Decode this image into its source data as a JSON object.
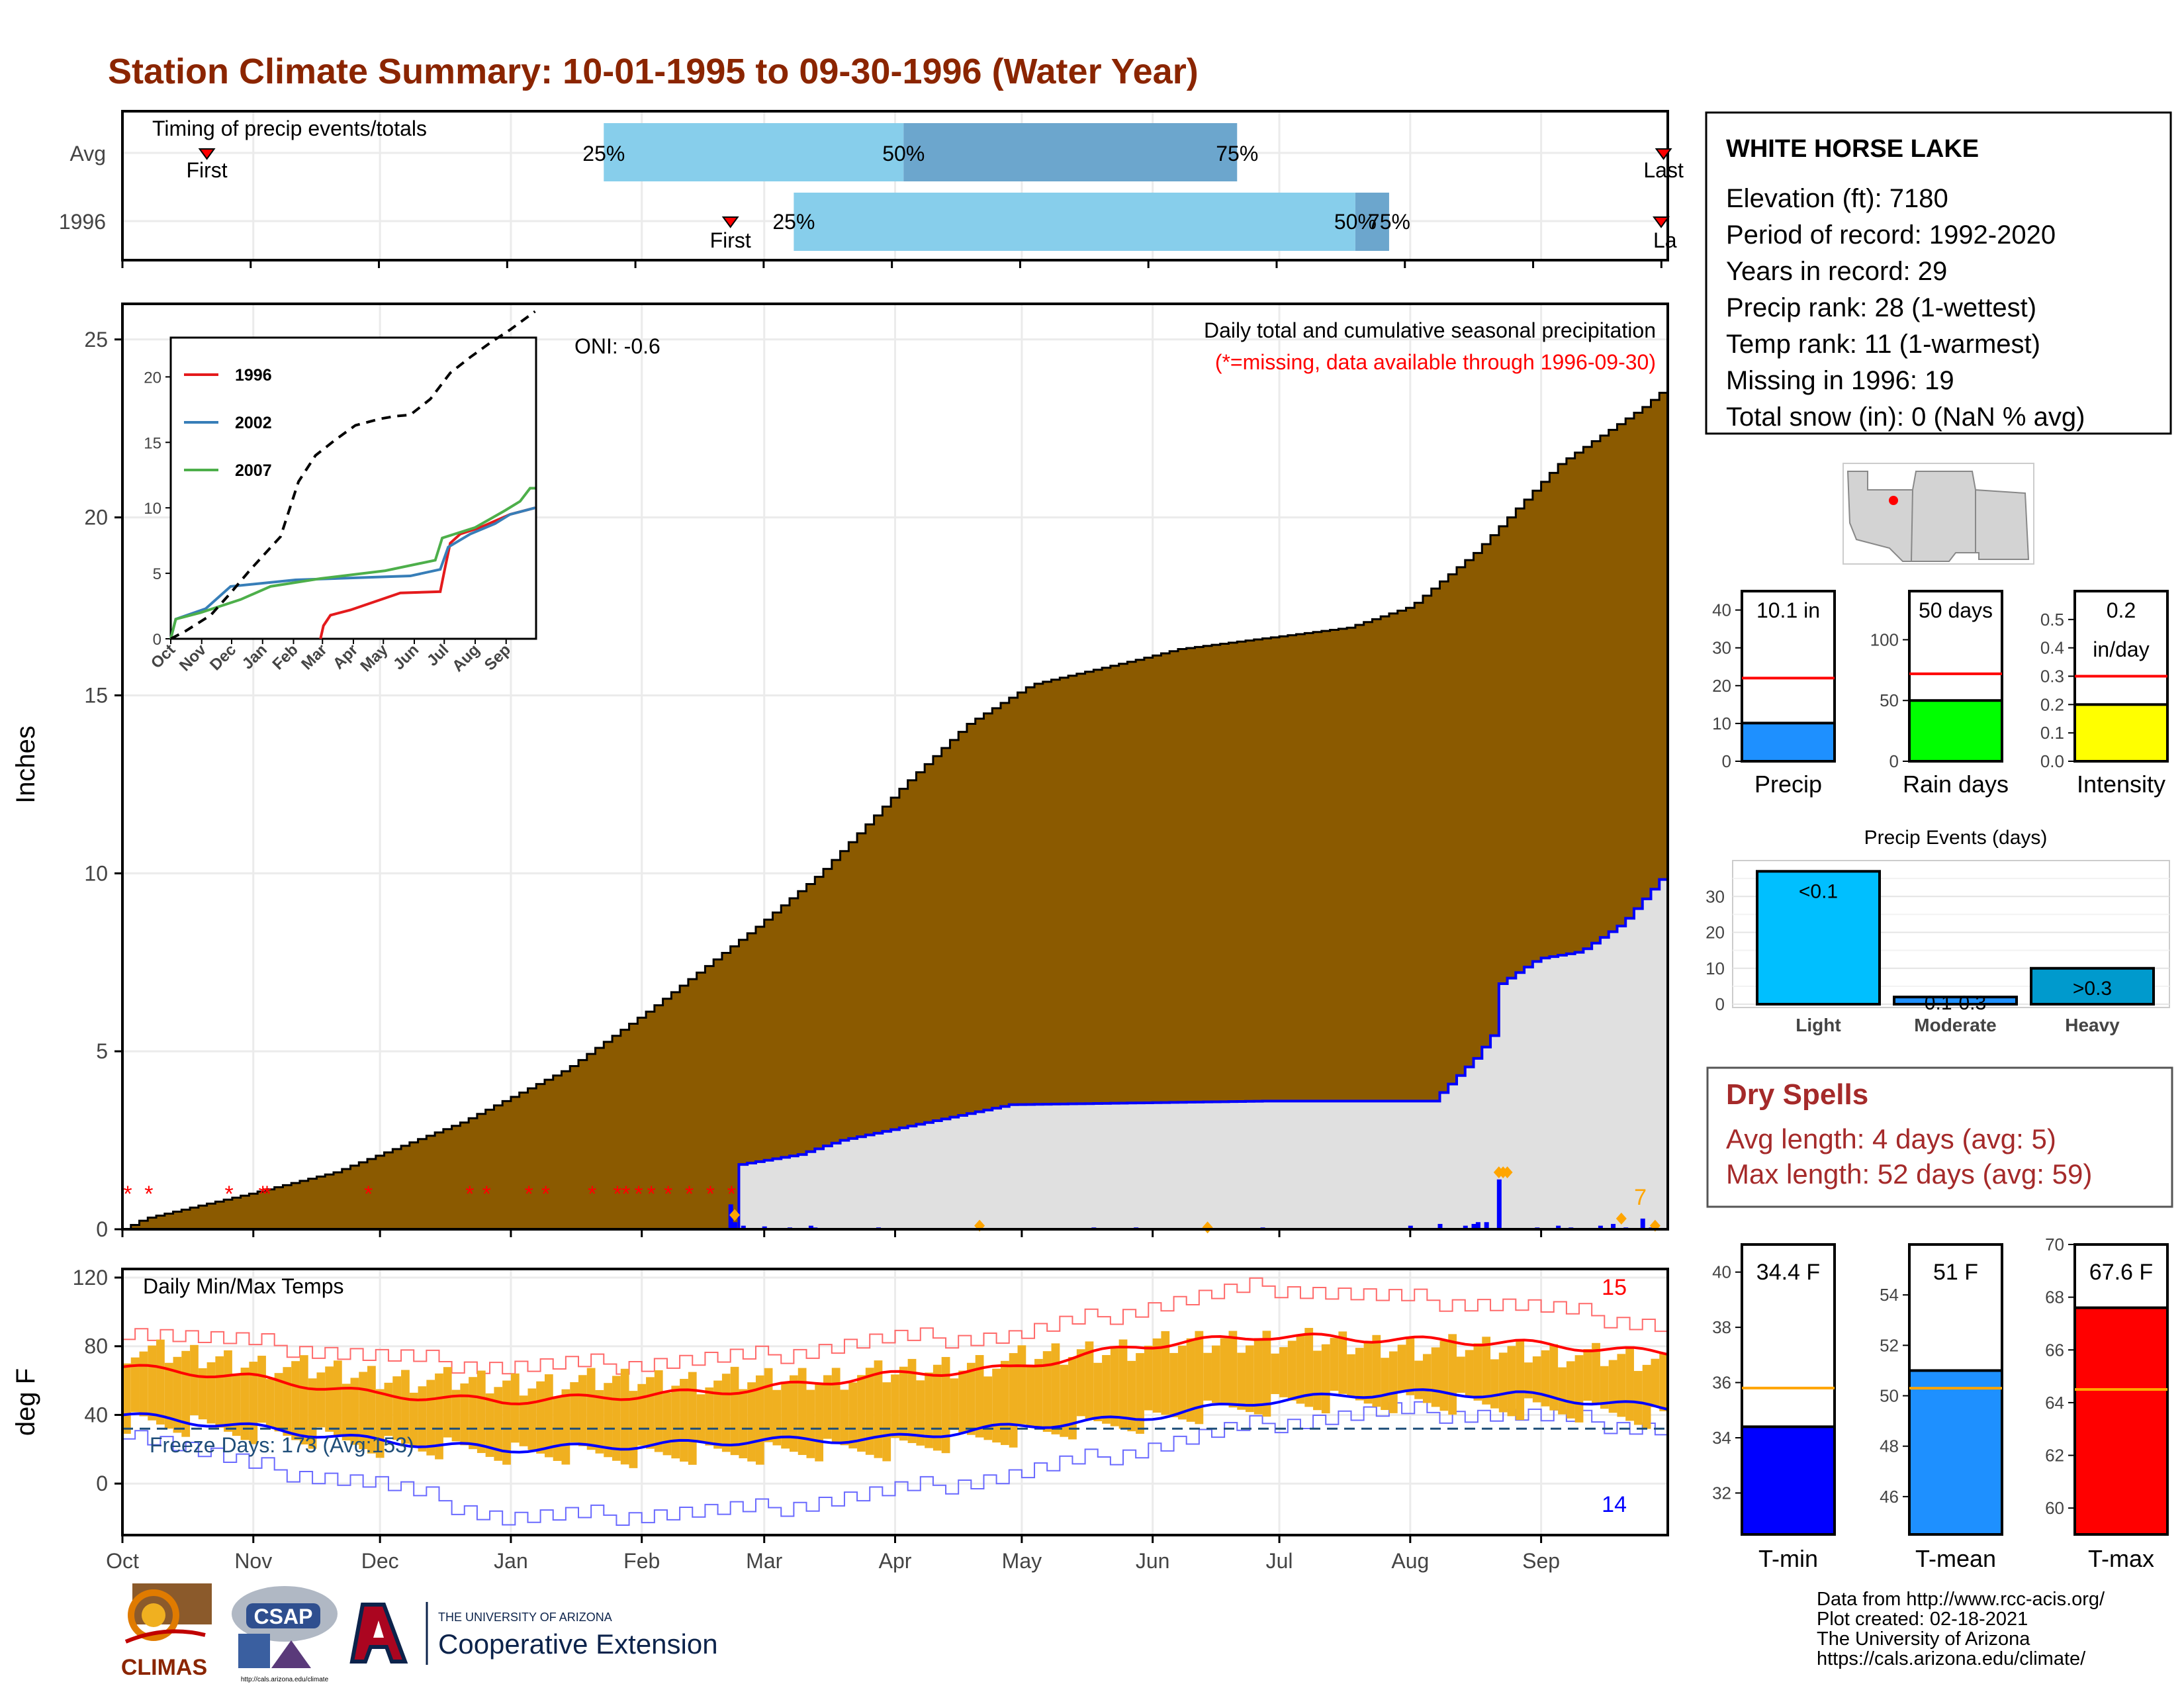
{
  "page": {
    "title": "Station Climate Summary: 10-01-1995 to 09-30-1996 (Water Year)",
    "title_color": "#8B2500",
    "footer_lines": [
      "Data from http://www.rcc-acis.org/",
      "Plot created: 02-18-2021",
      "The University of Arizona",
      "https://cals.arizona.edu/climate/"
    ],
    "logos": {
      "climas": "CLIMAS",
      "csap": "CSAP",
      "csap_url": "http://cals.arizona.edu/climate",
      "ua_small": "THE UNIVERSITY OF ARIZONA",
      "ua_big": "Cooperative Extension",
      "ua_letter": "A"
    }
  },
  "station": {
    "name": "WHITE HORSE LAKE",
    "lines": [
      "Elevation (ft): 7180",
      "Period of record: 1992-2020",
      "Years in record: 29",
      "Precip rank: 28 (1-wettest)",
      "Temp rank: 11 (1-warmest)",
      "Missing in 1996: 19",
      "Total snow (in): 0 (NaN % avg)"
    ]
  },
  "dry_spells": {
    "title": "Dry Spells",
    "lines": [
      "Avg length: 4 days (avg: 5)",
      "Max length: 52 days (avg: 59)"
    ],
    "color": "#A52A2A"
  },
  "chart_data": [
    {
      "id": "timing",
      "type": "bar",
      "title": "Timing of precip events/totals",
      "rows": [
        "Avg",
        "1996"
      ],
      "x_domain_days": [
        0,
        365
      ],
      "avg": {
        "first": 20,
        "p25": 114,
        "p50": 185,
        "p75": 264,
        "last": 365
      },
      "year": {
        "first": 144,
        "p25": 159,
        "p50": 292,
        "p75": 300,
        "last": 378
      },
      "labels": {
        "first": "First",
        "last": "Last",
        "p25": "25%",
        "p50": "50%",
        "p75": "75%",
        "last_cut": "La"
      },
      "colors": {
        "light": "#87CEEB",
        "dark": "#6CA6CD",
        "marker": "#FF0000"
      }
    },
    {
      "id": "precip",
      "type": "area",
      "ylabel": "Inches",
      "ylim": [
        0,
        26
      ],
      "yticks": [
        0,
        5,
        10,
        15,
        20,
        25
      ],
      "annotation_title": "Daily total and cumulative seasonal precipitation",
      "annotation_missing": "(*=missing, data available through 1996-09-30)",
      "oni": "ONI: -0.6",
      "corner_count": "7",
      "avg_cumulative": [
        [
          0,
          0
        ],
        [
          5,
          0.3
        ],
        [
          30,
          1
        ],
        [
          50,
          1.6
        ],
        [
          65,
          2.3
        ],
        [
          80,
          3
        ],
        [
          105,
          4.5
        ],
        [
          125,
          6.2
        ],
        [
          150,
          8.5
        ],
        [
          165,
          10
        ],
        [
          185,
          12.5
        ],
        [
          200,
          14.2
        ],
        [
          215,
          15.3
        ],
        [
          240,
          16
        ],
        [
          250,
          16.3
        ],
        [
          270,
          16.6
        ],
        [
          290,
          16.9
        ],
        [
          305,
          17.5
        ],
        [
          320,
          19
        ],
        [
          340,
          21.5
        ],
        [
          360,
          23.1
        ],
        [
          365,
          23.6
        ]
      ],
      "year_cumulative": [
        [
          0,
          0
        ],
        [
          144,
          0
        ],
        [
          145,
          1.8
        ],
        [
          160,
          2.1
        ],
        [
          170,
          2.5
        ],
        [
          210,
          3.5
        ],
        [
          270,
          3.6
        ],
        [
          310,
          3.6
        ],
        [
          320,
          4.8
        ],
        [
          325,
          5.6
        ],
        [
          326,
          6.9
        ],
        [
          335,
          7.6
        ],
        [
          345,
          7.8
        ],
        [
          355,
          8.6
        ],
        [
          366,
          10.1
        ]
      ],
      "missing_days": [
        0,
        5,
        24,
        32,
        33,
        57,
        81,
        85,
        95,
        99,
        110,
        116,
        118,
        121,
        124,
        128,
        133,
        138,
        143
      ],
      "daily_bars": [
        [
          144,
          0.7
        ],
        [
          145,
          0.2
        ],
        [
          147,
          0.1
        ],
        [
          152,
          0.08
        ],
        [
          158,
          0.05
        ],
        [
          163,
          0.1
        ],
        [
          164,
          0.05
        ],
        [
          179,
          0.05
        ],
        [
          230,
          0.05
        ],
        [
          240,
          0.05
        ],
        [
          270,
          0.05
        ],
        [
          305,
          0.1
        ],
        [
          312,
          0.15
        ],
        [
          318,
          0.1
        ],
        [
          320,
          0.15
        ],
        [
          321,
          0.2
        ],
        [
          323,
          0.2
        ],
        [
          326,
          1.4
        ],
        [
          335,
          0.05
        ],
        [
          340,
          0.1
        ],
        [
          343,
          0.05
        ],
        [
          350,
          0.1
        ],
        [
          353,
          0.15
        ],
        [
          356,
          0.05
        ],
        [
          360,
          0.3
        ],
        [
          362,
          0.05
        ]
      ],
      "orange_points": [
        [
          145,
          0.4
        ],
        [
          203,
          0.1
        ],
        [
          257,
          0.05
        ],
        [
          326,
          1.6
        ],
        [
          328,
          1.6
        ],
        [
          327,
          1.6
        ],
        [
          355,
          0.3
        ],
        [
          363,
          0.1
        ]
      ],
      "colors": {
        "avg_fill": "#8B5A00",
        "year_fill": "#E0E0E0",
        "year_line": "#0000FF",
        "missing": "#FF0000",
        "bar": "#0000FF",
        "orange": "#FFA500"
      }
    },
    {
      "id": "inset",
      "type": "line",
      "ylim": [
        0,
        23
      ],
      "yticks": [
        0,
        5,
        10,
        15,
        20
      ],
      "xticks": [
        "Oct",
        "Nov",
        "Dec",
        "Jan",
        "Feb",
        "Mar",
        "Apr",
        "May",
        "Jun",
        "Jul",
        "Aug",
        "Sep"
      ],
      "series": [
        {
          "name": "1996",
          "color": "#E41A1C",
          "points": [
            [
              150,
              0
            ],
            [
              153,
              1
            ],
            [
              160,
              1.8
            ],
            [
              180,
              2.2
            ],
            [
              230,
              3.5
            ],
            [
              270,
              3.6
            ],
            [
              275,
              5.5
            ],
            [
              280,
              7.3
            ],
            [
              290,
              8
            ],
            [
              310,
              8.5
            ],
            [
              340,
              9.5
            ],
            [
              365,
              10
            ]
          ]
        },
        {
          "name": "2002",
          "color": "#377EB8",
          "points": [
            [
              0,
              0
            ],
            [
              5,
              1.5
            ],
            [
              35,
              2.3
            ],
            [
              60,
              4
            ],
            [
              125,
              4.5
            ],
            [
              240,
              4.8
            ],
            [
              270,
              5.3
            ],
            [
              278,
              7
            ],
            [
              300,
              8
            ],
            [
              325,
              8.8
            ],
            [
              340,
              9.5
            ],
            [
              365,
              10
            ]
          ]
        },
        {
          "name": "2007",
          "color": "#4DAF4A",
          "points": [
            [
              0,
              0
            ],
            [
              5,
              1.5
            ],
            [
              30,
              2
            ],
            [
              70,
              3
            ],
            [
              100,
              4
            ],
            [
              150,
              4.6
            ],
            [
              215,
              5.2
            ],
            [
              265,
              6
            ],
            [
              272,
              7.7
            ],
            [
              305,
              8.5
            ],
            [
              335,
              9.8
            ],
            [
              350,
              10.5
            ],
            [
              360,
              11.5
            ],
            [
              365,
              11.5
            ]
          ]
        },
        {
          "name": "",
          "color": "#000000",
          "dashed": true,
          "points": [
            [
              0,
              0
            ],
            [
              15,
              0.6
            ],
            [
              40,
              1.8
            ],
            [
              60,
              3.5
            ],
            [
              80,
              5.3
            ],
            [
              110,
              7.8
            ],
            [
              128,
              12
            ],
            [
              145,
              14
            ],
            [
              165,
              15.2
            ],
            [
              185,
              16.3
            ],
            [
              210,
              16.8
            ],
            [
              225,
              17
            ],
            [
              240,
              17.1
            ],
            [
              260,
              18.3
            ],
            [
              280,
              20.3
            ],
            [
              300,
              21.5
            ],
            [
              320,
              22.6
            ],
            [
              340,
              23.6
            ],
            [
              365,
              25
            ]
          ]
        }
      ]
    },
    {
      "id": "temps",
      "type": "line",
      "title": "Daily Min/Max Temps",
      "ylabel": "deg F",
      "ylim": [
        -30,
        125
      ],
      "yticks": [
        0,
        40,
        80,
        120
      ],
      "freeze_line": 32,
      "freeze_text": "Freeze Days: 173 (Avg:153)",
      "count_hot": "15",
      "count_cold": "14",
      "avg_max_series": [
        [
          0,
          68
        ],
        [
          30,
          62
        ],
        [
          60,
          52
        ],
        [
          90,
          48
        ],
        [
          120,
          51
        ],
        [
          150,
          55
        ],
        [
          180,
          63
        ],
        [
          210,
          67
        ],
        [
          240,
          80
        ],
        [
          270,
          86
        ],
        [
          300,
          84
        ],
        [
          330,
          82
        ],
        [
          365,
          76
        ]
      ],
      "avg_min_series": [
        [
          0,
          40
        ],
        [
          30,
          33
        ],
        [
          60,
          25
        ],
        [
          90,
          20
        ],
        [
          120,
          22
        ],
        [
          150,
          25
        ],
        [
          180,
          26
        ],
        [
          210,
          33
        ],
        [
          240,
          38
        ],
        [
          270,
          48
        ],
        [
          300,
          53
        ],
        [
          330,
          52
        ],
        [
          365,
          44
        ]
      ],
      "record_max_series": [
        [
          0,
          90
        ],
        [
          30,
          82
        ],
        [
          60,
          74
        ],
        [
          90,
          68
        ],
        [
          120,
          70
        ],
        [
          150,
          74
        ],
        [
          180,
          84
        ],
        [
          210,
          86
        ],
        [
          240,
          102
        ],
        [
          270,
          115
        ],
        [
          300,
          108
        ],
        [
          330,
          104
        ],
        [
          365,
          92
        ]
      ],
      "record_min_series": [
        [
          0,
          32
        ],
        [
          30,
          10
        ],
        [
          60,
          0
        ],
        [
          90,
          -20
        ],
        [
          120,
          -18
        ],
        [
          150,
          -15
        ],
        [
          180,
          -5
        ],
        [
          210,
          5
        ],
        [
          240,
          20
        ],
        [
          270,
          35
        ],
        [
          300,
          42
        ],
        [
          330,
          40
        ],
        [
          365,
          32
        ]
      ],
      "obs_max_series": [
        [
          0,
          78
        ],
        [
          30,
          70
        ],
        [
          60,
          62
        ],
        [
          90,
          58
        ],
        [
          120,
          60
        ],
        [
          150,
          60
        ],
        [
          180,
          64
        ],
        [
          210,
          72
        ],
        [
          240,
          80
        ],
        [
          270,
          84
        ],
        [
          300,
          80
        ],
        [
          330,
          78
        ],
        [
          365,
          70
        ]
      ],
      "obs_min_series": [
        [
          0,
          36
        ],
        [
          30,
          30
        ],
        [
          60,
          22
        ],
        [
          90,
          18
        ],
        [
          120,
          16
        ],
        [
          150,
          18
        ],
        [
          180,
          20
        ],
        [
          210,
          28
        ],
        [
          240,
          36
        ],
        [
          270,
          46
        ],
        [
          300,
          48
        ],
        [
          330,
          44
        ],
        [
          365,
          38
        ]
      ],
      "xticks": [
        "Oct",
        "Nov",
        "Dec",
        "Jan",
        "Feb",
        "Mar",
        "Apr",
        "May",
        "Jun",
        "Jul",
        "Aug",
        "Sep"
      ],
      "colors": {
        "bars": "#F0B020",
        "avg_max": "#FF0000",
        "avg_min": "#0000FF",
        "record_max": "#FF6A6A",
        "record_min": "#6A6AFF",
        "freeze": "#1F4E79"
      }
    },
    {
      "id": "mini_precip",
      "type": "bar",
      "panels": [
        {
          "label": "Precip",
          "value": 10.1,
          "avg": 22,
          "ymax": 45,
          "yticks": [
            0,
            10,
            20,
            30,
            40
          ],
          "tick_labels": [
            "0",
            "10",
            "20",
            "30",
            "40"
          ],
          "text": "10.1 in",
          "color": "#1E90FF"
        },
        {
          "label": "Rain days",
          "value": 50,
          "avg": 72,
          "ymax": 140,
          "yticks": [
            0,
            50,
            100
          ],
          "tick_labels": [
            "0",
            "50",
            "100"
          ],
          "text": "50 days",
          "color": "#00FF00"
        },
        {
          "label": "Intensity",
          "value": 0.2,
          "avg": 0.3,
          "ymax": 0.6,
          "yticks": [
            0,
            0.1,
            0.2,
            0.3,
            0.4,
            0.5
          ],
          "tick_labels": [
            "0.0",
            "0.1",
            "0.2",
            "0.3",
            "0.4",
            "0.5"
          ],
          "text": "0.2",
          "text2": "in/day",
          "color": "#FFFF00"
        }
      ]
    },
    {
      "id": "events",
      "type": "bar",
      "title": "Precip Events (days)",
      "categories": [
        "Light",
        "Moderate",
        "Heavy"
      ],
      "values": [
        37,
        2,
        10
      ],
      "bar_labels": [
        "<0.1",
        "0.1-0.3",
        ">0.3"
      ],
      "ylim": [
        0,
        40
      ],
      "yticks": [
        0,
        10,
        20,
        30
      ],
      "colors": [
        "#00BFFF",
        "#1E90FF",
        "#009ACD"
      ]
    },
    {
      "id": "mini_temp",
      "type": "bar",
      "panels": [
        {
          "label": "T-min",
          "value": 34.4,
          "avg": 35.8,
          "ymin": 30.5,
          "ymax": 41,
          "yticks": [
            32,
            34,
            36,
            38,
            40
          ],
          "text": "34.4 F",
          "color": "#0000FF"
        },
        {
          "label": "T-mean",
          "value": 51,
          "avg": 50.3,
          "ymin": 44.5,
          "ymax": 56,
          "yticks": [
            46,
            48,
            50,
            52,
            54
          ],
          "text": "51 F",
          "color": "#1E90FF"
        },
        {
          "label": "T-max",
          "value": 67.6,
          "avg": 64.5,
          "ymin": 59,
          "ymax": 70,
          "yticks": [
            60,
            62,
            64,
            66,
            68,
            70
          ],
          "text": "67.6 F",
          "color": "#FF0000"
        }
      ]
    }
  ]
}
